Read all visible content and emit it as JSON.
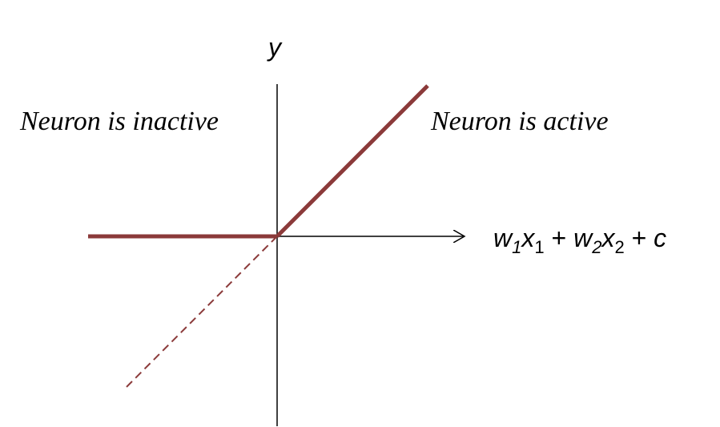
{
  "labels": {
    "y_axis": "y",
    "left_region": "Neuron is inactive",
    "right_region": "Neuron is active"
  },
  "x_axis_expression": {
    "w1": "w",
    "w1_sub": "1",
    "x1": "x",
    "x1_sub": "1",
    "plus1": " + ",
    "w2": "w",
    "w2_sub": "2",
    "x2": "x",
    "x2_sub": "2",
    "plus2": " + ",
    "c": "c"
  },
  "colors": {
    "relu_line": "#8b3a3a",
    "axes": "#000000"
  }
}
